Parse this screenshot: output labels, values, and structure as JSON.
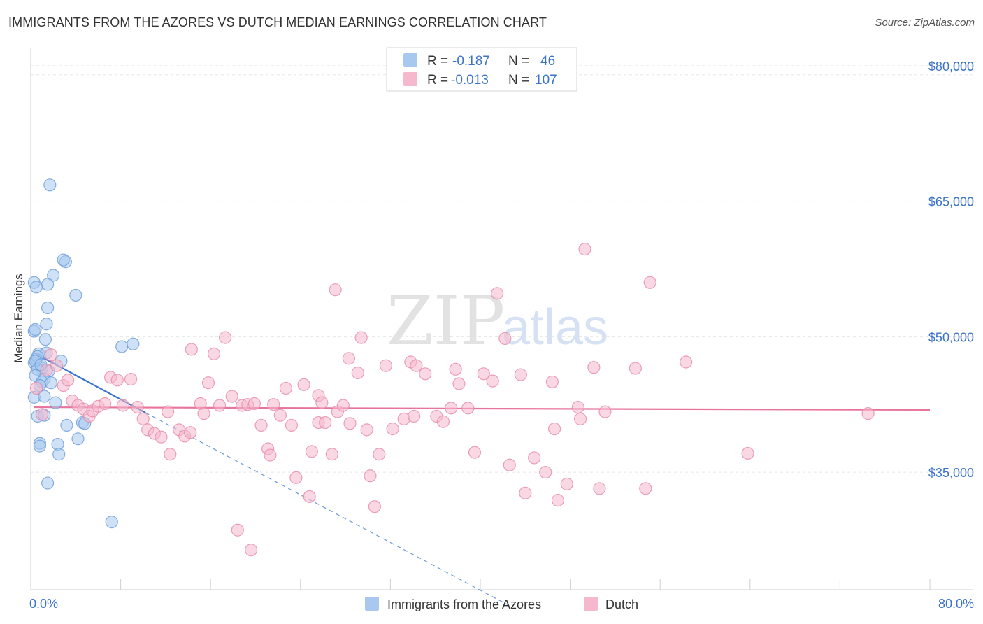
{
  "header": {
    "title": "IMMIGRANTS FROM THE AZORES VS DUTCH MEDIAN EARNINGS CORRELATION CHART",
    "source": "Source: ZipAtlas.com"
  },
  "watermark": {
    "zip": "ZIP",
    "atlas": "atlas"
  },
  "legend": {
    "rows": [
      {
        "r_label": "R =",
        "r_value": "-0.187",
        "n_label": "N =",
        "n_value": "46",
        "color": "#a8c8ef",
        "stroke": "#6a9bd8"
      },
      {
        "r_label": "R =",
        "r_value": "-0.013",
        "n_label": "N =",
        "n_value": "107",
        "color": "#f6b8cc",
        "stroke": "#e58aa8"
      }
    ]
  },
  "chart_data": {
    "type": "scatter",
    "title": "IMMIGRANTS FROM THE AZORES VS DUTCH MEDIAN EARNINGS CORRELATION CHART",
    "xlabel": "",
    "ylabel": "Median Earnings",
    "xlim": [
      0,
      80
    ],
    "ylim": [
      22000,
      82000
    ],
    "x_tick_labels": [
      "0.0%",
      "80.0%"
    ],
    "y_ticks": [
      35000,
      50000,
      65000,
      80000
    ],
    "y_tick_labels": [
      "$35,000",
      "$50,000",
      "$65,000",
      "$80,000"
    ],
    "grid": true,
    "legend_position": "top-center",
    "series": [
      {
        "name": "Immigrants from the Azores",
        "color": "#6a9bd8",
        "fill": "#a8c8ef",
        "trend": {
          "x": [
            0.3,
            10.2
          ],
          "y": [
            48200,
            41600
          ],
          "dashed_to": [
            42.5,
            20300
          ]
        },
        "points": [
          [
            1.7,
            66800
          ],
          [
            3.1,
            58300
          ],
          [
            2.9,
            58500
          ],
          [
            0.3,
            56000
          ],
          [
            2.0,
            56800
          ],
          [
            0.5,
            55500
          ],
          [
            1.5,
            55800
          ],
          [
            4.0,
            54600
          ],
          [
            1.5,
            53200
          ],
          [
            1.4,
            51400
          ],
          [
            0.3,
            50600
          ],
          [
            0.4,
            50800
          ],
          [
            1.3,
            49700
          ],
          [
            8.1,
            48900
          ],
          [
            9.1,
            49200
          ],
          [
            0.3,
            47100
          ],
          [
            0.7,
            48100
          ],
          [
            1.4,
            48200
          ],
          [
            0.5,
            47500
          ],
          [
            0.6,
            47800
          ],
          [
            2.7,
            47300
          ],
          [
            1.0,
            46500
          ],
          [
            1.6,
            46200
          ],
          [
            0.6,
            46400
          ],
          [
            0.4,
            45700
          ],
          [
            1.2,
            45300
          ],
          [
            1.0,
            45000
          ],
          [
            1.8,
            44900
          ],
          [
            0.8,
            44600
          ],
          [
            0.3,
            43300
          ],
          [
            1.2,
            43400
          ],
          [
            2.2,
            42700
          ],
          [
            0.6,
            41200
          ],
          [
            1.2,
            41300
          ],
          [
            4.6,
            40500
          ],
          [
            4.8,
            40400
          ],
          [
            3.2,
            40200
          ],
          [
            4.2,
            38700
          ],
          [
            0.8,
            38200
          ],
          [
            2.4,
            38100
          ],
          [
            0.8,
            37900
          ],
          [
            2.5,
            37000
          ],
          [
            1.5,
            33800
          ],
          [
            7.2,
            29500
          ],
          [
            0.4,
            47300
          ],
          [
            0.9,
            46900
          ]
        ]
      },
      {
        "name": "Dutch",
        "color": "#e58aa8",
        "fill": "#f6b8cc",
        "trend": {
          "x": [
            0.3,
            80.0
          ],
          "y": [
            42200,
            41900
          ]
        },
        "points": [
          [
            0.5,
            44300
          ],
          [
            1.0,
            41400
          ],
          [
            1.4,
            46300
          ],
          [
            1.8,
            48000
          ],
          [
            2.3,
            46800
          ],
          [
            2.9,
            44600
          ],
          [
            3.3,
            45200
          ],
          [
            3.7,
            42900
          ],
          [
            4.2,
            42400
          ],
          [
            4.7,
            42000
          ],
          [
            5.2,
            41200
          ],
          [
            5.5,
            41800
          ],
          [
            6.0,
            42300
          ],
          [
            6.6,
            42600
          ],
          [
            7.1,
            45500
          ],
          [
            7.7,
            45200
          ],
          [
            8.2,
            42400
          ],
          [
            8.9,
            45300
          ],
          [
            9.5,
            42200
          ],
          [
            10.0,
            40900
          ],
          [
            10.4,
            39700
          ],
          [
            11.0,
            39300
          ],
          [
            11.6,
            38900
          ],
          [
            12.2,
            41700
          ],
          [
            12.4,
            37000
          ],
          [
            13.2,
            39700
          ],
          [
            13.7,
            39000
          ],
          [
            14.2,
            39400
          ],
          [
            14.3,
            48600
          ],
          [
            15.1,
            42600
          ],
          [
            15.4,
            41500
          ],
          [
            15.8,
            44900
          ],
          [
            16.3,
            48100
          ],
          [
            16.8,
            42400
          ],
          [
            17.3,
            49900
          ],
          [
            17.9,
            43400
          ],
          [
            18.4,
            28600
          ],
          [
            18.8,
            42400
          ],
          [
            19.3,
            42500
          ],
          [
            19.6,
            26400
          ],
          [
            19.9,
            42600
          ],
          [
            20.5,
            40200
          ],
          [
            21.1,
            37600
          ],
          [
            21.3,
            36900
          ],
          [
            21.6,
            42500
          ],
          [
            22.2,
            41300
          ],
          [
            22.7,
            44300
          ],
          [
            23.2,
            40200
          ],
          [
            23.6,
            34400
          ],
          [
            24.3,
            44700
          ],
          [
            24.8,
            32300
          ],
          [
            25.0,
            37300
          ],
          [
            25.6,
            43500
          ],
          [
            25.9,
            42700
          ],
          [
            25.6,
            40500
          ],
          [
            26.2,
            40500
          ],
          [
            26.8,
            37000
          ],
          [
            27.3,
            41700
          ],
          [
            27.8,
            42400
          ],
          [
            28.4,
            40400
          ],
          [
            28.3,
            47600
          ],
          [
            29.1,
            46000
          ],
          [
            29.4,
            49900
          ],
          [
            29.9,
            39700
          ],
          [
            30.2,
            34600
          ],
          [
            30.6,
            31200
          ],
          [
            31.0,
            37000
          ],
          [
            31.6,
            46800
          ],
          [
            32.2,
            39800
          ],
          [
            33.2,
            40900
          ],
          [
            33.8,
            47200
          ],
          [
            34.3,
            46800
          ],
          [
            34.1,
            41200
          ],
          [
            35.1,
            45900
          ],
          [
            36.1,
            41200
          ],
          [
            36.7,
            40600
          ],
          [
            37.4,
            42100
          ],
          [
            37.8,
            46400
          ],
          [
            38.1,
            44800
          ],
          [
            38.9,
            42100
          ],
          [
            39.5,
            37200
          ],
          [
            40.3,
            45900
          ],
          [
            41.1,
            45100
          ],
          [
            41.5,
            54800
          ],
          [
            42.2,
            49800
          ],
          [
            42.6,
            35800
          ],
          [
            43.6,
            45800
          ],
          [
            44.0,
            32700
          ],
          [
            44.8,
            36600
          ],
          [
            45.8,
            35000
          ],
          [
            46.4,
            45000
          ],
          [
            46.6,
            39800
          ],
          [
            46.9,
            31900
          ],
          [
            47.7,
            33700
          ],
          [
            48.7,
            42200
          ],
          [
            48.9,
            40900
          ],
          [
            49.3,
            59700
          ],
          [
            50.1,
            46600
          ],
          [
            50.6,
            33200
          ],
          [
            51.1,
            41700
          ],
          [
            53.8,
            46500
          ],
          [
            54.7,
            33200
          ],
          [
            55.1,
            56000
          ],
          [
            58.3,
            47200
          ],
          [
            63.8,
            37100
          ],
          [
            74.5,
            41500
          ],
          [
            27.1,
            55200
          ]
        ]
      }
    ]
  },
  "bottom_legend": {
    "items": [
      {
        "label": "Immigrants from the Azores"
      },
      {
        "label": "Dutch"
      }
    ]
  }
}
